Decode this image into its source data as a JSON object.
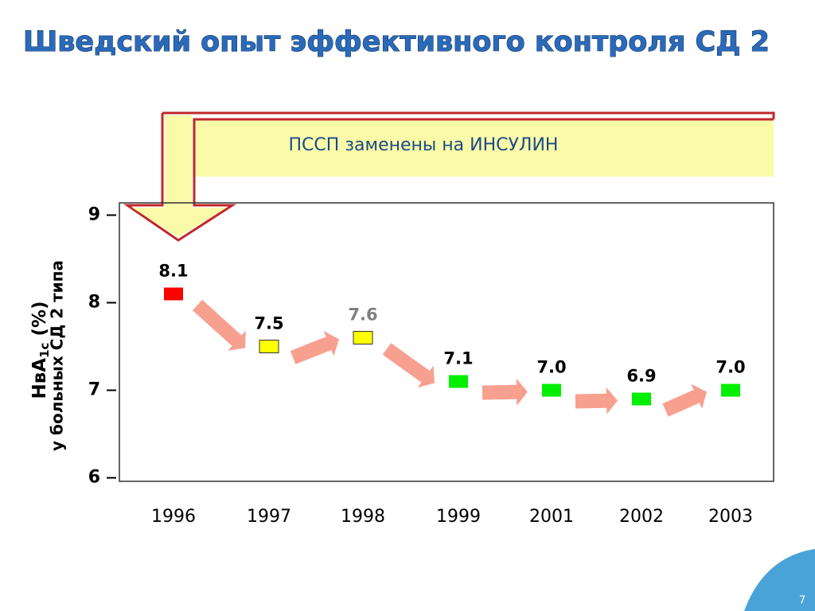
{
  "chart_data": {
    "type": "scatter",
    "title": "Шведский опыт эффективного контроля СД 2",
    "annotation": "ПССП заменены на ИНСУЛИН",
    "ylabel": [
      "НвA",
      "1c",
      " (%)"
    ],
    "ylabel2": "у больных СД 2 типа",
    "categories": [
      "1996",
      "1997",
      "1998",
      "1999",
      "2001",
      "2002",
      "2003"
    ],
    "values": [
      8.1,
      7.5,
      7.6,
      7.1,
      7.0,
      6.9,
      7.0
    ],
    "value_labels": [
      "8.1",
      "7.5",
      "7.6",
      "7.1",
      "7.0",
      "6.9",
      "7.0"
    ],
    "colors": [
      "#ff0000",
      "#ffff00",
      "#ffff00",
      "#00ee00",
      "#00ee00",
      "#00ee00",
      "#00ee00"
    ],
    "label_colors": [
      "#000000",
      "#000000",
      "#808080",
      "#000000",
      "#000000",
      "#000000",
      "#000000"
    ],
    "ylim": [
      5.96,
      9.14
    ],
    "yticks": [
      6,
      7,
      8,
      9
    ]
  },
  "page_number": "7"
}
